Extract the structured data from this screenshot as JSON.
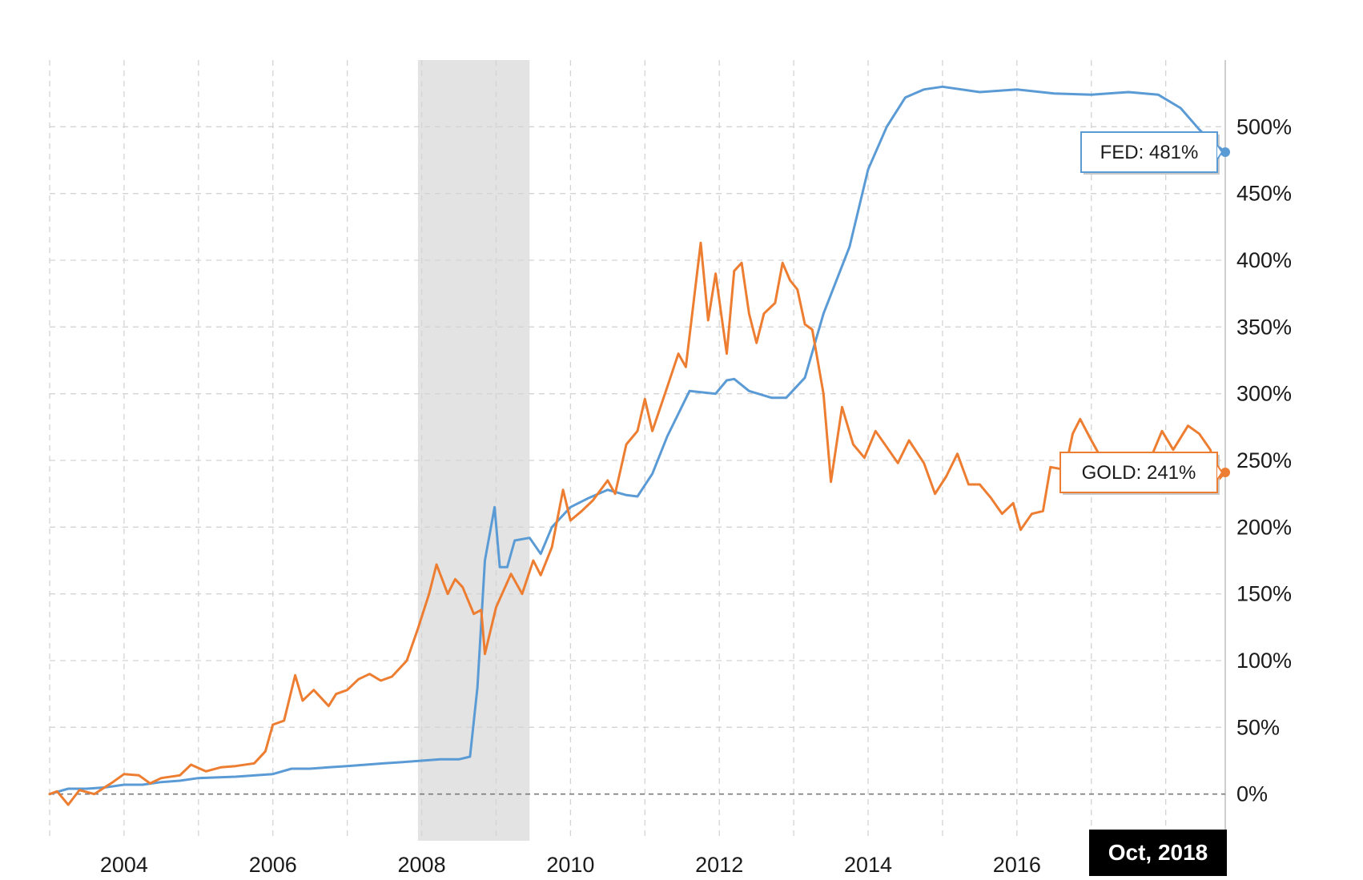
{
  "chart_data": {
    "type": "line",
    "x_axis": {
      "ticks": [
        "2004",
        "2006",
        "2008",
        "2010",
        "2012",
        "2014",
        "2016"
      ],
      "range": [
        "2003.0",
        "2018.8"
      ]
    },
    "y_axis": {
      "position": "right",
      "ticks": [
        "0%",
        "50%",
        "100%",
        "150%",
        "200%",
        "250%",
        "300%",
        "350%",
        "400%",
        "450%",
        "500%"
      ],
      "ylim": [
        -35,
        550
      ]
    },
    "grid": true,
    "shaded_region": {
      "x": [
        2007.95,
        2009.45
      ],
      "color": "#e3e3e3"
    },
    "cursor_label": "Oct, 2018",
    "series": [
      {
        "name": "FED",
        "color": "#5b9bd5",
        "end_label": "FED: 481%",
        "points": [
          [
            2003.0,
            0
          ],
          [
            2003.25,
            4
          ],
          [
            2003.5,
            4
          ],
          [
            2003.75,
            5
          ],
          [
            2004.0,
            7
          ],
          [
            2004.25,
            7
          ],
          [
            2004.5,
            9
          ],
          [
            2004.75,
            10
          ],
          [
            2005.0,
            12
          ],
          [
            2005.5,
            13
          ],
          [
            2006.0,
            15
          ],
          [
            2006.25,
            19
          ],
          [
            2006.5,
            19
          ],
          [
            2006.75,
            20
          ],
          [
            2007.0,
            21
          ],
          [
            2007.5,
            23
          ],
          [
            2007.75,
            24
          ],
          [
            2008.0,
            25
          ],
          [
            2008.25,
            26
          ],
          [
            2008.5,
            26
          ],
          [
            2008.65,
            28
          ],
          [
            2008.75,
            80
          ],
          [
            2008.85,
            175
          ],
          [
            2008.98,
            215
          ],
          [
            2009.05,
            170
          ],
          [
            2009.15,
            170
          ],
          [
            2009.25,
            190
          ],
          [
            2009.45,
            192
          ],
          [
            2009.6,
            180
          ],
          [
            2009.75,
            200
          ],
          [
            2010.0,
            215
          ],
          [
            2010.25,
            222
          ],
          [
            2010.5,
            228
          ],
          [
            2010.75,
            224
          ],
          [
            2010.9,
            223
          ],
          [
            2011.1,
            240
          ],
          [
            2011.3,
            268
          ],
          [
            2011.6,
            302
          ],
          [
            2011.95,
            300
          ],
          [
            2012.1,
            310
          ],
          [
            2012.2,
            311
          ],
          [
            2012.4,
            302
          ],
          [
            2012.7,
            297
          ],
          [
            2012.9,
            297
          ],
          [
            2013.15,
            312
          ],
          [
            2013.4,
            360
          ],
          [
            2013.75,
            410
          ],
          [
            2014.0,
            468
          ],
          [
            2014.25,
            500
          ],
          [
            2014.5,
            522
          ],
          [
            2014.75,
            528
          ],
          [
            2015.0,
            530
          ],
          [
            2015.5,
            526
          ],
          [
            2016.0,
            528
          ],
          [
            2016.5,
            525
          ],
          [
            2017.0,
            524
          ],
          [
            2017.5,
            526
          ],
          [
            2017.9,
            524
          ],
          [
            2018.2,
            514
          ],
          [
            2018.45,
            498
          ],
          [
            2018.6,
            490
          ],
          [
            2018.8,
            481
          ]
        ]
      },
      {
        "name": "GOLD",
        "color": "#ed7d31",
        "end_label": "GOLD: 241%",
        "points": [
          [
            2003.0,
            0
          ],
          [
            2003.1,
            2
          ],
          [
            2003.25,
            -8
          ],
          [
            2003.4,
            3
          ],
          [
            2003.6,
            0
          ],
          [
            2003.85,
            9
          ],
          [
            2004.0,
            15
          ],
          [
            2004.2,
            14
          ],
          [
            2004.35,
            8
          ],
          [
            2004.5,
            12
          ],
          [
            2004.75,
            14
          ],
          [
            2004.9,
            22
          ],
          [
            2005.1,
            17
          ],
          [
            2005.3,
            20
          ],
          [
            2005.5,
            21
          ],
          [
            2005.75,
            23
          ],
          [
            2005.9,
            32
          ],
          [
            2006.0,
            52
          ],
          [
            2006.15,
            55
          ],
          [
            2006.3,
            89
          ],
          [
            2006.4,
            70
          ],
          [
            2006.55,
            78
          ],
          [
            2006.75,
            66
          ],
          [
            2006.85,
            75
          ],
          [
            2007.0,
            78
          ],
          [
            2007.15,
            86
          ],
          [
            2007.3,
            90
          ],
          [
            2007.45,
            85
          ],
          [
            2007.6,
            88
          ],
          [
            2007.8,
            100
          ],
          [
            2007.95,
            124
          ],
          [
            2008.1,
            150
          ],
          [
            2008.2,
            172
          ],
          [
            2008.35,
            150
          ],
          [
            2008.45,
            161
          ],
          [
            2008.55,
            155
          ],
          [
            2008.7,
            135
          ],
          [
            2008.8,
            138
          ],
          [
            2008.85,
            105
          ],
          [
            2009.0,
            140
          ],
          [
            2009.2,
            165
          ],
          [
            2009.35,
            150
          ],
          [
            2009.5,
            175
          ],
          [
            2009.6,
            164
          ],
          [
            2009.75,
            185
          ],
          [
            2009.9,
            228
          ],
          [
            2010.0,
            205
          ],
          [
            2010.15,
            212
          ],
          [
            2010.3,
            220
          ],
          [
            2010.5,
            235
          ],
          [
            2010.6,
            225
          ],
          [
            2010.75,
            262
          ],
          [
            2010.9,
            272
          ],
          [
            2011.0,
            296
          ],
          [
            2011.1,
            272
          ],
          [
            2011.3,
            305
          ],
          [
            2011.45,
            330
          ],
          [
            2011.55,
            320
          ],
          [
            2011.75,
            413
          ],
          [
            2011.85,
            355
          ],
          [
            2011.95,
            390
          ],
          [
            2012.1,
            330
          ],
          [
            2012.2,
            392
          ],
          [
            2012.3,
            398
          ],
          [
            2012.4,
            360
          ],
          [
            2012.5,
            338
          ],
          [
            2012.6,
            360
          ],
          [
            2012.75,
            368
          ],
          [
            2012.85,
            398
          ],
          [
            2012.95,
            385
          ],
          [
            2013.05,
            378
          ],
          [
            2013.15,
            352
          ],
          [
            2013.25,
            348
          ],
          [
            2013.4,
            300
          ],
          [
            2013.5,
            234
          ],
          [
            2013.65,
            290
          ],
          [
            2013.8,
            262
          ],
          [
            2013.95,
            252
          ],
          [
            2014.1,
            272
          ],
          [
            2014.25,
            260
          ],
          [
            2014.4,
            248
          ],
          [
            2014.55,
            265
          ],
          [
            2014.75,
            248
          ],
          [
            2014.9,
            225
          ],
          [
            2015.05,
            238
          ],
          [
            2015.2,
            255
          ],
          [
            2015.35,
            232
          ],
          [
            2015.5,
            232
          ],
          [
            2015.65,
            222
          ],
          [
            2015.8,
            210
          ],
          [
            2015.95,
            218
          ],
          [
            2016.05,
            198
          ],
          [
            2016.2,
            210
          ],
          [
            2016.35,
            212
          ],
          [
            2016.45,
            245
          ],
          [
            2016.65,
            243
          ],
          [
            2016.75,
            270
          ],
          [
            2016.85,
            281
          ],
          [
            2017.0,
            265
          ],
          [
            2017.15,
            250
          ],
          [
            2017.35,
            252
          ],
          [
            2017.5,
            246
          ],
          [
            2017.65,
            240
          ],
          [
            2017.8,
            252
          ],
          [
            2017.95,
            272
          ],
          [
            2018.1,
            258
          ],
          [
            2018.3,
            276
          ],
          [
            2018.45,
            270
          ],
          [
            2018.6,
            258
          ],
          [
            2018.7,
            235
          ],
          [
            2018.8,
            241
          ]
        ]
      }
    ]
  }
}
